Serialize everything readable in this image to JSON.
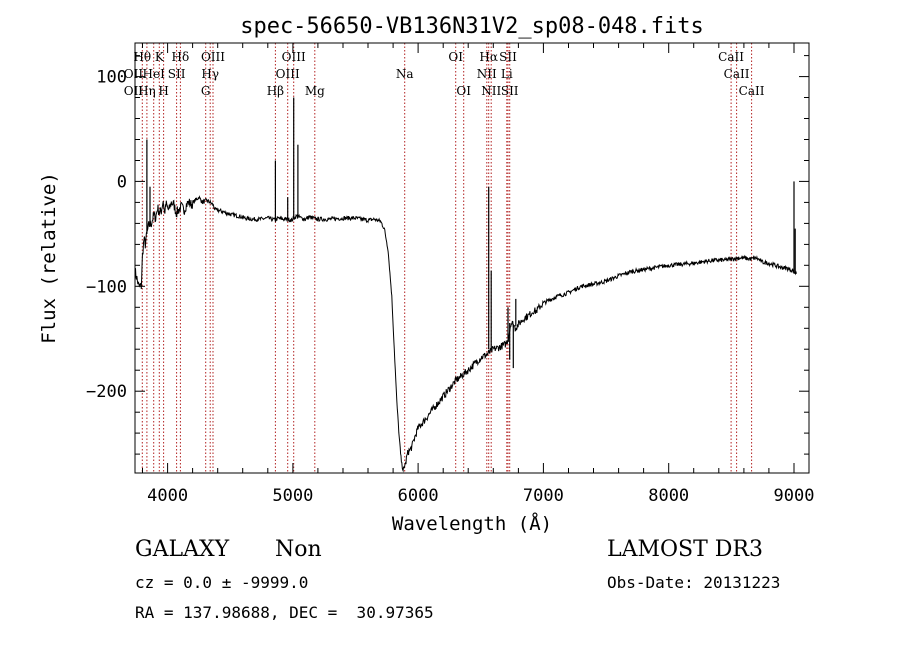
{
  "chart_data": {
    "type": "line",
    "title": "spec-56650-VB136N31V2_sp08-048.fits",
    "xlabel": "Wavelength (Å)",
    "ylabel": "Flux (relative)",
    "xlim": [
      3740,
      9120
    ],
    "ylim": [
      -278,
      132
    ],
    "x_ticks": [
      4000,
      5000,
      6000,
      7000,
      8000,
      9000
    ],
    "y_ticks": [
      -200,
      -100,
      0,
      100
    ],
    "grid": false,
    "spectrum": {
      "x": [
        3740,
        3770,
        3790,
        3800,
        3812,
        3822,
        3835,
        3850,
        3870,
        3890,
        3905,
        3920,
        3935,
        3950,
        3965,
        3975,
        3990,
        4010,
        4030,
        4050,
        4070,
        4090,
        4101,
        4110,
        4130,
        4150,
        4170,
        4190,
        4220,
        4250,
        4280,
        4310,
        4340,
        4361,
        4380,
        4420,
        4470,
        4520,
        4570,
        4620,
        4680,
        4740,
        4800,
        4861,
        4880,
        4920,
        4960,
        4990,
        5007,
        5030,
        5070,
        5100,
        5130,
        5160,
        5200,
        5300,
        5400,
        5500,
        5600,
        5650,
        5700,
        5730,
        5760,
        5790,
        5810,
        5830,
        5850,
        5860,
        5870,
        5880,
        5890,
        5895,
        5900,
        5910,
        5920,
        5935,
        5950,
        5970,
        6000,
        6050,
        6100,
        6200,
        6300,
        6400,
        6500,
        6550,
        6600,
        6650,
        6700,
        6720,
        6740,
        6760,
        6775,
        6790,
        6810,
        6850,
        6880,
        6900,
        6920,
        6940,
        6960,
        7000,
        7050,
        7100,
        7200,
        7300,
        7400,
        7500,
        7600,
        7700,
        7800,
        7900,
        8000,
        8100,
        8200,
        8300,
        8400,
        8450,
        8500,
        8550,
        8600,
        8650,
        8700,
        8750,
        8800,
        8850,
        8900,
        8950,
        8990,
        9020
      ],
      "y": [
        -85,
        -100,
        -100,
        -70,
        -55,
        -60,
        -50,
        -42,
        -40,
        -32,
        -35,
        -25,
        -30,
        -28,
        -18,
        -30,
        -22,
        -28,
        -20,
        -22,
        -30,
        -27,
        -25,
        -24,
        -28,
        -22,
        -20,
        -22,
        -18,
        -15,
        -20,
        -18,
        -20,
        -22,
        -27,
        -28,
        -30,
        -32,
        -33,
        -35,
        -36,
        -36,
        -35,
        -37,
        -35,
        -36,
        -36,
        -37,
        -35,
        -33,
        -35,
        -36,
        -34,
        -35,
        -36,
        -36,
        -35,
        -35,
        -37,
        -36,
        -38,
        -45,
        -65,
        -110,
        -160,
        -210,
        -245,
        -260,
        -270,
        -275,
        -275,
        -268,
        -270,
        -262,
        -258,
        -256,
        -253,
        -245,
        -235,
        -228,
        -220,
        -205,
        -190,
        -180,
        -168,
        -165,
        -160,
        -158,
        -155,
        -150,
        -135,
        -136,
        -140,
        -138,
        -135,
        -130,
        -128,
        -126,
        -123,
        -124,
        -121,
        -116,
        -113,
        -110,
        -106,
        -100,
        -98,
        -95,
        -90,
        -86,
        -84,
        -82,
        -80,
        -79,
        -78,
        -76,
        -75,
        -75,
        -74,
        -73,
        -73,
        -74,
        -73,
        -77,
        -78,
        -80,
        -82,
        -83,
        -85,
        -88
      ]
    },
    "features": [
      {
        "x": 3820,
        "y": -55,
        "label": "",
        "wavelength": 3820
      },
      {
        "x": 3835,
        "y": 40,
        "label": "",
        "wavelength": 3835
      },
      {
        "x": 3860,
        "y": -5,
        "label": "",
        "wavelength": 3860
      },
      {
        "x": 4861,
        "y": 20,
        "label": "",
        "wavelength": 4861
      },
      {
        "x": 4959,
        "y": -15,
        "label": "",
        "wavelength": 4959
      },
      {
        "x": 5007,
        "y": 80,
        "label": "",
        "wavelength": 5007
      },
      {
        "x": 5040,
        "y": 35,
        "label": "",
        "wavelength": 5040
      },
      {
        "x": 6563,
        "y": -5,
        "label": "",
        "wavelength": 6563
      },
      {
        "x": 6583,
        "y": -85,
        "label": "",
        "wavelength": 6583
      },
      {
        "x": 6717,
        "y": -120,
        "label": "",
        "wavelength": 6717
      },
      {
        "x": 6731,
        "y": -170,
        "label": "",
        "wavelength": 6731
      },
      {
        "x": 6760,
        "y": -178,
        "label": "",
        "wavelength": 6760
      },
      {
        "x": 6780,
        "y": -112,
        "label": "",
        "wavelength": 6780
      },
      {
        "x": 9000,
        "y": -88,
        "label": "",
        "wavelength": 9000
      },
      {
        "x": 9000,
        "y": 0,
        "label": "",
        "wavelength": 9000
      },
      {
        "x": 9010,
        "y": -45,
        "label": "",
        "wavelength": 9010
      }
    ],
    "lines": [
      {
        "wavelength": 3727,
        "label": "OII",
        "row": 2
      },
      {
        "wavelength": 3727,
        "label": "OII",
        "row": 3
      },
      {
        "wavelength": 3798,
        "label": "Hθ",
        "row": 1
      },
      {
        "wavelength": 3835,
        "label": "Hη",
        "row": 3
      },
      {
        "wavelength": 3889,
        "label": "HeI",
        "row": 2
      },
      {
        "wavelength": 3934,
        "label": "K",
        "row": 1
      },
      {
        "wavelength": 3968,
        "label": "H",
        "row": 3
      },
      {
        "wavelength": 4072,
        "label": "SII",
        "row": 2
      },
      {
        "wavelength": 4102,
        "label": "Hδ",
        "row": 1
      },
      {
        "wavelength": 4304,
        "label": "G",
        "row": 3
      },
      {
        "wavelength": 4340,
        "label": "Hγ",
        "row": 2
      },
      {
        "wavelength": 4363,
        "label": "OIII",
        "row": 1
      },
      {
        "wavelength": 4861,
        "label": "Hβ",
        "row": 3
      },
      {
        "wavelength": 4959,
        "label": "OIII",
        "row": 2
      },
      {
        "wavelength": 5007,
        "label": "OIII",
        "row": 1
      },
      {
        "wavelength": 5175,
        "label": "Mg",
        "row": 3
      },
      {
        "wavelength": 5893,
        "label": "Na",
        "row": 2
      },
      {
        "wavelength": 6300,
        "label": "OI",
        "row": 1
      },
      {
        "wavelength": 6364,
        "label": "OI",
        "row": 3
      },
      {
        "wavelength": 6548,
        "label": "NII",
        "row": 2
      },
      {
        "wavelength": 6563,
        "label": "Hα",
        "row": 1
      },
      {
        "wavelength": 6583,
        "label": "NII",
        "row": 3
      },
      {
        "wavelength": 6708,
        "label": "Li",
        "row": 2
      },
      {
        "wavelength": 6717,
        "label": "SII",
        "row": 1
      },
      {
        "wavelength": 6731,
        "label": "SII",
        "row": 3
      },
      {
        "wavelength": 8498,
        "label": "CaII",
        "row": 1
      },
      {
        "wavelength": 8542,
        "label": "CaII",
        "row": 2
      },
      {
        "wavelength": 8662,
        "label": "CaII",
        "row": 3
      }
    ]
  },
  "info": {
    "class_label": "GALAXY",
    "subclass_label": "Non",
    "survey_label": "LAMOST DR3",
    "cz_line": "cz = 0.0 ± -9999.0",
    "obs_date": "Obs-Date: 20131223",
    "coords_line": "RA = 137.98688, DEC =  30.97365"
  }
}
